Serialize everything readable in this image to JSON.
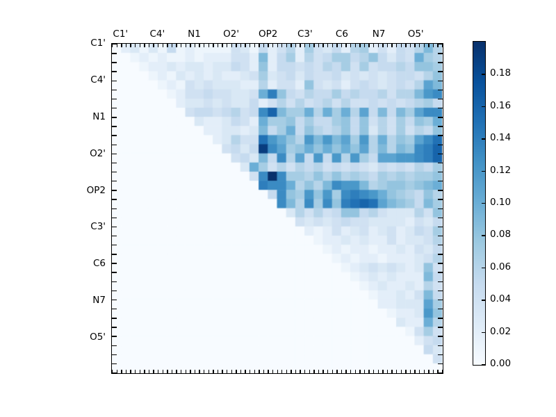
{
  "figure": {
    "background": "#ffffff",
    "title": ""
  },
  "chart_data": {
    "type": "heatmap",
    "title": "",
    "xlabel": "",
    "ylabel": "",
    "axis_labels": [
      "C1'",
      "C4'",
      "N1",
      "O2'",
      "OP2",
      "C3'",
      "C6",
      "N7",
      "O5'"
    ],
    "group_size": 4,
    "n": 36,
    "grid": false,
    "legend_position": "colorbar-right",
    "colormap": "Blues",
    "colormap_stops": [
      [
        0.0,
        "#f7fbff"
      ],
      [
        0.125,
        "#deebf7"
      ],
      [
        0.25,
        "#c6dbef"
      ],
      [
        0.375,
        "#9ecae1"
      ],
      [
        0.5,
        "#6baed6"
      ],
      [
        0.625,
        "#4292c6"
      ],
      [
        0.75,
        "#2171b5"
      ],
      [
        0.875,
        "#08519c"
      ],
      [
        1.0,
        "#08306b"
      ]
    ],
    "vmin": 0.0,
    "vmax": 0.2,
    "colorbar_ticks": [
      "0.00",
      "0.02",
      "0.04",
      "0.06",
      "0.08",
      "0.10",
      "0.12",
      "0.14",
      "0.16",
      "0.18"
    ],
    "matrix": [
      [
        0,
        0.02,
        0.03,
        0.01,
        0.03,
        0.01,
        0.05,
        0.01,
        0.02,
        0.01,
        0.01,
        0.01,
        0.01,
        0.04,
        0.03,
        0.01,
        0.05,
        0.02,
        0.04,
        0.06,
        0.02,
        0.07,
        0.04,
        0.03,
        0.05,
        0.02,
        0.06,
        0.07,
        0.02,
        0.04,
        0.02,
        0.05,
        0.04,
        0.06,
        0.09,
        0.06
      ],
      [
        0,
        0,
        0.01,
        0.02,
        0.01,
        0.02,
        0.01,
        0.01,
        0.02,
        0.01,
        0.02,
        0.02,
        0.02,
        0.04,
        0.04,
        0.02,
        0.09,
        0.02,
        0.05,
        0.07,
        0.02,
        0.06,
        0.04,
        0.05,
        0.07,
        0.07,
        0.05,
        0.06,
        0.08,
        0.05,
        0.03,
        0.05,
        0.04,
        0.1,
        0.07,
        0.06
      ],
      [
        0,
        0,
        0,
        0.01,
        0.02,
        0.02,
        0.03,
        0.02,
        0.03,
        0.03,
        0.02,
        0.03,
        0.03,
        0.05,
        0.04,
        0.02,
        0.08,
        0.02,
        0.05,
        0.05,
        0.04,
        0.05,
        0.04,
        0.06,
        0.05,
        0.07,
        0.04,
        0.07,
        0.04,
        0.05,
        0.05,
        0.06,
        0.05,
        0.08,
        0.08,
        0.07
      ],
      [
        0,
        0,
        0,
        0,
        0.01,
        0.02,
        0.01,
        0.03,
        0.02,
        0.03,
        0.02,
        0.03,
        0.02,
        0.02,
        0.03,
        0.04,
        0.07,
        0.03,
        0.04,
        0.05,
        0.03,
        0.05,
        0.04,
        0.04,
        0.05,
        0.03,
        0.04,
        0.03,
        0.04,
        0.03,
        0.04,
        0.05,
        0.05,
        0.04,
        0.06,
        0.08
      ],
      [
        0,
        0,
        0,
        0,
        0,
        0.01,
        0.02,
        0.01,
        0.04,
        0.03,
        0.04,
        0.03,
        0.03,
        0.03,
        0.02,
        0.02,
        0.06,
        0.02,
        0.04,
        0.04,
        0.02,
        0.08,
        0.04,
        0.03,
        0.04,
        0.02,
        0.04,
        0.05,
        0.04,
        0.03,
        0.04,
        0.05,
        0.04,
        0.06,
        0.11,
        0.09
      ],
      [
        0,
        0,
        0,
        0,
        0,
        0,
        0.01,
        0.02,
        0.04,
        0.04,
        0.05,
        0.04,
        0.04,
        0.03,
        0.03,
        0.04,
        0.1,
        0.14,
        0.08,
        0.05,
        0.04,
        0.06,
        0.05,
        0.05,
        0.07,
        0.05,
        0.06,
        0.05,
        0.05,
        0.06,
        0.04,
        0.06,
        0.06,
        0.09,
        0.12,
        0.13
      ],
      [
        0,
        0,
        0,
        0,
        0,
        0,
        0,
        0.02,
        0.03,
        0.03,
        0.04,
        0.03,
        0.04,
        0.03,
        0.03,
        0.05,
        0.02,
        0.04,
        0.06,
        0.04,
        0.06,
        0.04,
        0.05,
        0.06,
        0.04,
        0.06,
        0.04,
        0.04,
        0.05,
        0.04,
        0.05,
        0.04,
        0.05,
        0.06,
        0.07,
        0.05
      ],
      [
        0,
        0,
        0,
        0,
        0,
        0,
        0,
        0,
        0.04,
        0.05,
        0.05,
        0.04,
        0.05,
        0.06,
        0.04,
        0.05,
        0.13,
        0.16,
        0.09,
        0.07,
        0.07,
        0.1,
        0.06,
        0.1,
        0.07,
        0.1,
        0.06,
        0.11,
        0.05,
        0.09,
        0.05,
        0.09,
        0.07,
        0.11,
        0.13,
        0.13
      ],
      [
        0,
        0,
        0,
        0,
        0,
        0,
        0,
        0,
        0,
        0.03,
        0.02,
        0.02,
        0.03,
        0.05,
        0.04,
        0.02,
        0.1,
        0.07,
        0.07,
        0.08,
        0.05,
        0.07,
        0.05,
        0.05,
        0.07,
        0.08,
        0.05,
        0.08,
        0.04,
        0.06,
        0.04,
        0.07,
        0.05,
        0.08,
        0.07,
        0.1
      ],
      [
        0,
        0,
        0,
        0,
        0,
        0,
        0,
        0,
        0,
        0,
        0.02,
        0.02,
        0.03,
        0.03,
        0.02,
        0.03,
        0.09,
        0.05,
        0.07,
        0.1,
        0.05,
        0.08,
        0.06,
        0.05,
        0.06,
        0.08,
        0.05,
        0.08,
        0.03,
        0.06,
        0.04,
        0.07,
        0.04,
        0.06,
        0.05,
        0.08
      ],
      [
        0,
        0,
        0,
        0,
        0,
        0,
        0,
        0,
        0,
        0,
        0,
        0.02,
        0.03,
        0.06,
        0.04,
        0.04,
        0.15,
        0.12,
        0.1,
        0.08,
        0.06,
        0.12,
        0.09,
        0.12,
        0.09,
        0.11,
        0.07,
        0.12,
        0.06,
        0.1,
        0.06,
        0.08,
        0.07,
        0.11,
        0.13,
        0.15
      ],
      [
        0,
        0,
        0,
        0,
        0,
        0,
        0,
        0,
        0,
        0,
        0,
        0,
        0.04,
        0.05,
        0.03,
        0.05,
        0.19,
        0.13,
        0.11,
        0.07,
        0.08,
        0.1,
        0.08,
        0.1,
        0.08,
        0.1,
        0.08,
        0.11,
        0.06,
        0.09,
        0.06,
        0.09,
        0.08,
        0.13,
        0.14,
        0.16
      ],
      [
        0,
        0,
        0,
        0,
        0,
        0,
        0,
        0,
        0,
        0,
        0,
        0,
        0,
        0.04,
        0.05,
        0.03,
        0.09,
        0.05,
        0.13,
        0.06,
        0.11,
        0.05,
        0.12,
        0.05,
        0.12,
        0.06,
        0.12,
        0.07,
        0.05,
        0.11,
        0.11,
        0.12,
        0.12,
        0.13,
        0.14,
        0.16
      ],
      [
        0,
        0,
        0,
        0,
        0,
        0,
        0,
        0,
        0,
        0,
        0,
        0,
        0,
        0,
        0.03,
        0.1,
        0.07,
        0.04,
        0.06,
        0.04,
        0.06,
        0.05,
        0.06,
        0.04,
        0.05,
        0.04,
        0.05,
        0.04,
        0.03,
        0.05,
        0.04,
        0.05,
        0.04,
        0.06,
        0.05,
        0.07
      ],
      [
        0,
        0,
        0,
        0,
        0,
        0,
        0,
        0,
        0,
        0,
        0,
        0,
        0,
        0,
        0,
        0.04,
        0.13,
        0.2,
        0.13,
        0.07,
        0.07,
        0.06,
        0.08,
        0.06,
        0.08,
        0.06,
        0.07,
        0.06,
        0.05,
        0.07,
        0.06,
        0.07,
        0.06,
        0.07,
        0.07,
        0.08
      ],
      [
        0,
        0,
        0,
        0,
        0,
        0,
        0,
        0,
        0,
        0,
        0,
        0,
        0,
        0,
        0,
        0,
        0.14,
        0.13,
        0.13,
        0.1,
        0.06,
        0.08,
        0.06,
        0.09,
        0.13,
        0.12,
        0.12,
        0.09,
        0.06,
        0.07,
        0.08,
        0.08,
        0.07,
        0.08,
        0.09,
        0.1
      ],
      [
        0,
        0,
        0,
        0,
        0,
        0,
        0,
        0,
        0,
        0,
        0,
        0,
        0,
        0,
        0,
        0,
        0,
        0.05,
        0.13,
        0.08,
        0.07,
        0.12,
        0.08,
        0.12,
        0.07,
        0.13,
        0.14,
        0.13,
        0.12,
        0.1,
        0.08,
        0.07,
        0.06,
        0.05,
        0.08,
        0.06
      ],
      [
        0,
        0,
        0,
        0,
        0,
        0,
        0,
        0,
        0,
        0,
        0,
        0,
        0,
        0,
        0,
        0,
        0,
        0,
        0.13,
        0.09,
        0.06,
        0.13,
        0.07,
        0.13,
        0.08,
        0.14,
        0.15,
        0.16,
        0.15,
        0.11,
        0.09,
        0.08,
        0.07,
        0.05,
        0.09,
        0.07
      ],
      [
        0,
        0,
        0,
        0,
        0,
        0,
        0,
        0,
        0,
        0,
        0,
        0,
        0,
        0,
        0,
        0,
        0,
        0,
        0,
        0.03,
        0.06,
        0.04,
        0.06,
        0.04,
        0.05,
        0.08,
        0.08,
        0.05,
        0.06,
        0.04,
        0.03,
        0.03,
        0.03,
        0.06,
        0.04,
        0.08
      ],
      [
        0,
        0,
        0,
        0,
        0,
        0,
        0,
        0,
        0,
        0,
        0,
        0,
        0,
        0,
        0,
        0,
        0,
        0,
        0,
        0,
        0.04,
        0.03,
        0.04,
        0.03,
        0.04,
        0.05,
        0.04,
        0.04,
        0.03,
        0.03,
        0.03,
        0.03,
        0.02,
        0.04,
        0.03,
        0.05
      ],
      [
        0,
        0,
        0,
        0,
        0,
        0,
        0,
        0,
        0,
        0,
        0,
        0,
        0,
        0,
        0,
        0,
        0,
        0,
        0,
        0,
        0,
        0.02,
        0.01,
        0.02,
        0.04,
        0.02,
        0.03,
        0.04,
        0.02,
        0.03,
        0.04,
        0.02,
        0.03,
        0.05,
        0.04,
        0.07
      ],
      [
        0,
        0,
        0,
        0,
        0,
        0,
        0,
        0,
        0,
        0,
        0,
        0,
        0,
        0,
        0,
        0,
        0,
        0,
        0,
        0,
        0,
        0,
        0.01,
        0.02,
        0.02,
        0.03,
        0.02,
        0.03,
        0.02,
        0.02,
        0.04,
        0.02,
        0.03,
        0.03,
        0.04,
        0.06
      ],
      [
        0,
        0,
        0,
        0,
        0,
        0,
        0,
        0,
        0,
        0,
        0,
        0,
        0,
        0,
        0,
        0,
        0,
        0,
        0,
        0,
        0,
        0,
        0,
        0.01,
        0.02,
        0.01,
        0.02,
        0.02,
        0.01,
        0.02,
        0.02,
        0.03,
        0.02,
        0.04,
        0.03,
        0.05
      ],
      [
        0,
        0,
        0,
        0,
        0,
        0,
        0,
        0,
        0,
        0,
        0,
        0,
        0,
        0,
        0,
        0,
        0,
        0,
        0,
        0,
        0,
        0,
        0,
        0,
        0.01,
        0.02,
        0.01,
        0.02,
        0.02,
        0.01,
        0.02,
        0.02,
        0.02,
        0.03,
        0.04,
        0.06
      ],
      [
        0,
        0,
        0,
        0,
        0,
        0,
        0,
        0,
        0,
        0,
        0,
        0,
        0,
        0,
        0,
        0,
        0,
        0,
        0,
        0,
        0,
        0,
        0,
        0,
        0,
        0.01,
        0.02,
        0.03,
        0.04,
        0.03,
        0.04,
        0.03,
        0.02,
        0.03,
        0.08,
        0.04
      ],
      [
        0,
        0,
        0,
        0,
        0,
        0,
        0,
        0,
        0,
        0,
        0,
        0,
        0,
        0,
        0,
        0,
        0,
        0,
        0,
        0,
        0,
        0,
        0,
        0,
        0,
        0,
        0.01,
        0.02,
        0.03,
        0.02,
        0.03,
        0.02,
        0.02,
        0.02,
        0.09,
        0.05
      ],
      [
        0,
        0,
        0,
        0,
        0,
        0,
        0,
        0,
        0,
        0,
        0,
        0,
        0,
        0,
        0,
        0,
        0,
        0,
        0,
        0,
        0,
        0,
        0,
        0,
        0,
        0,
        0,
        0.01,
        0.02,
        0.03,
        0.02,
        0.02,
        0.03,
        0.02,
        0.06,
        0.04
      ],
      [
        0,
        0,
        0,
        0,
        0,
        0,
        0,
        0,
        0,
        0,
        0,
        0,
        0,
        0,
        0,
        0,
        0,
        0,
        0,
        0,
        0,
        0,
        0,
        0,
        0,
        0,
        0,
        0,
        0.01,
        0.02,
        0.02,
        0.03,
        0.02,
        0.04,
        0.09,
        0.05
      ],
      [
        0,
        0,
        0,
        0,
        0,
        0,
        0,
        0,
        0,
        0,
        0,
        0,
        0,
        0,
        0,
        0,
        0,
        0,
        0,
        0,
        0,
        0,
        0,
        0,
        0,
        0,
        0,
        0,
        0,
        0.02,
        0.02,
        0.03,
        0.03,
        0.03,
        0.11,
        0.07
      ],
      [
        0,
        0,
        0,
        0,
        0,
        0,
        0,
        0,
        0,
        0,
        0,
        0,
        0,
        0,
        0,
        0,
        0,
        0,
        0,
        0,
        0,
        0,
        0,
        0,
        0,
        0,
        0,
        0,
        0,
        0,
        0.01,
        0.02,
        0.02,
        0.03,
        0.12,
        0.08
      ],
      [
        0,
        0,
        0,
        0,
        0,
        0,
        0,
        0,
        0,
        0,
        0,
        0,
        0,
        0,
        0,
        0,
        0,
        0,
        0,
        0,
        0,
        0,
        0,
        0,
        0,
        0,
        0,
        0,
        0,
        0,
        0,
        0.03,
        0.02,
        0.02,
        0.1,
        0.06
      ],
      [
        0,
        0,
        0,
        0,
        0,
        0,
        0,
        0,
        0,
        0,
        0,
        0,
        0,
        0,
        0,
        0,
        0,
        0,
        0,
        0,
        0,
        0,
        0,
        0,
        0,
        0,
        0,
        0,
        0,
        0,
        0,
        0,
        0.01,
        0.04,
        0.07,
        0.04
      ],
      [
        0,
        0,
        0,
        0,
        0,
        0,
        0,
        0,
        0,
        0,
        0,
        0,
        0,
        0,
        0,
        0,
        0,
        0,
        0,
        0,
        0,
        0,
        0,
        0,
        0,
        0,
        0,
        0,
        0,
        0,
        0,
        0,
        0,
        0.02,
        0.04,
        0.05
      ],
      [
        0,
        0,
        0,
        0,
        0,
        0,
        0,
        0,
        0,
        0,
        0,
        0,
        0,
        0,
        0,
        0,
        0,
        0,
        0,
        0,
        0,
        0,
        0,
        0,
        0,
        0,
        0,
        0,
        0,
        0,
        0,
        0,
        0,
        0,
        0.05,
        0.03
      ],
      [
        0,
        0,
        0,
        0,
        0,
        0,
        0,
        0,
        0,
        0,
        0,
        0,
        0,
        0,
        0,
        0,
        0,
        0,
        0,
        0,
        0,
        0,
        0,
        0,
        0,
        0,
        0,
        0,
        0,
        0,
        0,
        0,
        0,
        0,
        0,
        0.04
      ],
      [
        0,
        0,
        0,
        0,
        0,
        0,
        0,
        0,
        0,
        0,
        0,
        0,
        0,
        0,
        0,
        0,
        0,
        0,
        0,
        0,
        0,
        0,
        0,
        0,
        0,
        0,
        0,
        0,
        0,
        0,
        0,
        0,
        0,
        0,
        0,
        0
      ]
    ]
  }
}
